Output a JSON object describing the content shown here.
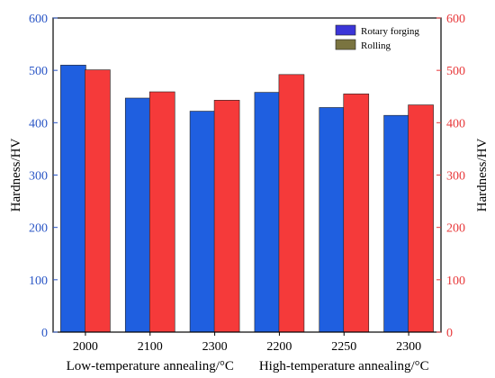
{
  "chart_data": {
    "type": "bar",
    "categories": [
      "2000",
      "2100",
      "2300",
      "2200",
      "2250",
      "2300"
    ],
    "group_labels": [
      "Low-temperature annealing/°C",
      "High-temperature annealing/°C"
    ],
    "group_sizes": [
      3,
      3
    ],
    "series": [
      {
        "name": "Rotary forging",
        "color": "#1f5fe0",
        "values": [
          510,
          447,
          422,
          458,
          429,
          414
        ]
      },
      {
        "name": "Rolling",
        "color": "#f53a3a",
        "values": [
          501,
          459,
          443,
          492,
          455,
          434
        ]
      }
    ],
    "ylabel": "Hardness/HV",
    "ylabel_right": "Hardness/HV",
    "ylim": [
      0,
      600
    ],
    "yticks": [
      "0",
      "100",
      "200",
      "300",
      "400",
      "500",
      "600"
    ],
    "legend_placement": "top-right",
    "left_axis_color": "#2a56c6",
    "right_axis_color": "#e8383a",
    "legend_swatch_colors": [
      "#3b35d8",
      "#7a7440"
    ],
    "grid": false
  }
}
